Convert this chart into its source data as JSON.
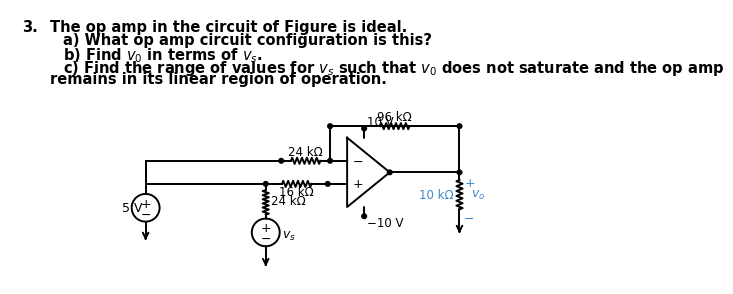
{
  "background_color": "#ffffff",
  "text_color": "#000000",
  "blue_color": "#4488cc",
  "line1": "The op amp in the circuit of Figure is ideal.",
  "line2": "a) What op amp circuit configuration is this?",
  "line4": "c) Find the range of values for $v_s$ such that $v_0$ does not saturate and the op amp",
  "line5": "remains in its linear region of operation.",
  "label_96k": "96 kΩ",
  "label_24k_top": "24 kΩ",
  "label_16k": "16 kΩ",
  "label_24k_bot": "24 kΩ",
  "label_5v": "5 V",
  "label_vs": "$v_s$",
  "label_10v_pos": "10 V",
  "label_10v_neg": "−10 V",
  "label_10k": "10 kΩ",
  "label_vo": "$v_o$",
  "label_plus_blue": "+",
  "label_minus_blue": "−"
}
